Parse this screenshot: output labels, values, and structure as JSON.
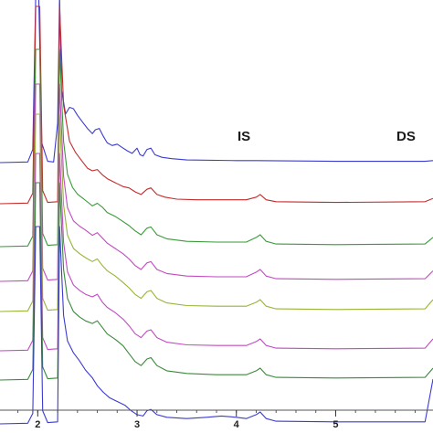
{
  "chart_data": {
    "type": "line",
    "title": "",
    "xlabel": "",
    "ylabel": "",
    "xlim": [
      1.62,
      5.98
    ],
    "x_ticks": [
      2,
      3,
      4,
      5
    ],
    "x_tick_labels": [
      "2",
      "3",
      "4",
      "5"
    ],
    "grid": false,
    "legend": "none",
    "annotations": [
      {
        "text": "IS",
        "x": 4.06
      },
      {
        "text": "DS",
        "x": 5.74
      }
    ],
    "series": [
      {
        "color": "#3b3bd0",
        "offset": 0,
        "points": [
          [
            1.62,
            0
          ],
          [
            1.9,
            1
          ],
          [
            1.95,
            20
          ],
          [
            1.98,
            300
          ],
          [
            2.01,
            300
          ],
          [
            2.04,
            30
          ],
          [
            2.1,
            2
          ],
          [
            2.16,
            1
          ],
          [
            2.2,
            60
          ],
          [
            2.22,
            300
          ],
          [
            2.24,
            110
          ],
          [
            2.28,
            74
          ],
          [
            2.32,
            84
          ],
          [
            2.36,
            82
          ],
          [
            2.4,
            72
          ],
          [
            2.45,
            62
          ],
          [
            2.5,
            52
          ],
          [
            2.55,
            44
          ],
          [
            2.58,
            50
          ],
          [
            2.62,
            52
          ],
          [
            2.66,
            40
          ],
          [
            2.7,
            30
          ],
          [
            2.75,
            26
          ],
          [
            2.8,
            28
          ],
          [
            2.85,
            23
          ],
          [
            2.9,
            18
          ],
          [
            2.95,
            14
          ],
          [
            3.0,
            22
          ],
          [
            3.03,
            12
          ],
          [
            3.06,
            10
          ],
          [
            3.1,
            20
          ],
          [
            3.14,
            22
          ],
          [
            3.18,
            12
          ],
          [
            3.25,
            8
          ],
          [
            3.35,
            6
          ],
          [
            3.5,
            4
          ],
          [
            4.0,
            3
          ],
          [
            4.2,
            3
          ],
          [
            5.0,
            2
          ],
          [
            5.9,
            2
          ],
          [
            5.98,
            3
          ]
        ]
      },
      {
        "color": "#c42a2a",
        "offset": 45,
        "points": [
          [
            1.62,
            0
          ],
          [
            1.9,
            1
          ],
          [
            1.95,
            16
          ],
          [
            1.98,
            300
          ],
          [
            2.02,
            300
          ],
          [
            2.05,
            20
          ],
          [
            2.1,
            2
          ],
          [
            2.2,
            3
          ],
          [
            2.22,
            300
          ],
          [
            2.26,
            150
          ],
          [
            2.32,
            95
          ],
          [
            2.38,
            78
          ],
          [
            2.45,
            64
          ],
          [
            2.5,
            54
          ],
          [
            2.55,
            50
          ],
          [
            2.6,
            52
          ],
          [
            2.65,
            44
          ],
          [
            2.7,
            38
          ],
          [
            2.78,
            32
          ],
          [
            2.86,
            26
          ],
          [
            2.92,
            24
          ],
          [
            2.98,
            18
          ],
          [
            3.04,
            14
          ],
          [
            3.1,
            22
          ],
          [
            3.14,
            24
          ],
          [
            3.2,
            14
          ],
          [
            3.28,
            10
          ],
          [
            3.4,
            7
          ],
          [
            3.6,
            6
          ],
          [
            3.8,
            6
          ],
          [
            4.1,
            6
          ],
          [
            4.2,
            10
          ],
          [
            4.24,
            14
          ],
          [
            4.3,
            6
          ],
          [
            4.4,
            3
          ],
          [
            5.0,
            2
          ],
          [
            5.9,
            3
          ],
          [
            5.98,
            8
          ]
        ]
      },
      {
        "color": "#3a9a3a",
        "offset": 92,
        "points": [
          [
            1.62,
            0
          ],
          [
            1.9,
            1
          ],
          [
            1.95,
            16
          ],
          [
            1.98,
            300
          ],
          [
            2.02,
            300
          ],
          [
            2.05,
            20
          ],
          [
            2.1,
            2
          ],
          [
            2.2,
            3
          ],
          [
            2.22,
            300
          ],
          [
            2.26,
            160
          ],
          [
            2.3,
            110
          ],
          [
            2.35,
            90
          ],
          [
            2.4,
            80
          ],
          [
            2.45,
            74
          ],
          [
            2.5,
            68
          ],
          [
            2.55,
            62
          ],
          [
            2.6,
            66
          ],
          [
            2.65,
            60
          ],
          [
            2.7,
            52
          ],
          [
            2.78,
            46
          ],
          [
            2.86,
            38
          ],
          [
            2.92,
            32
          ],
          [
            2.98,
            24
          ],
          [
            3.04,
            18
          ],
          [
            3.1,
            28
          ],
          [
            3.14,
            30
          ],
          [
            3.2,
            18
          ],
          [
            3.3,
            12
          ],
          [
            3.5,
            8
          ],
          [
            3.8,
            7
          ],
          [
            4.1,
            7
          ],
          [
            4.2,
            14
          ],
          [
            4.24,
            18
          ],
          [
            4.3,
            8
          ],
          [
            4.4,
            4
          ],
          [
            5.0,
            3
          ],
          [
            5.9,
            4
          ],
          [
            5.98,
            14
          ]
        ]
      },
      {
        "color": "#c24ac2",
        "offset": 130,
        "points": [
          [
            1.62,
            0
          ],
          [
            1.9,
            1
          ],
          [
            1.95,
            16
          ],
          [
            1.98,
            300
          ],
          [
            2.02,
            300
          ],
          [
            2.05,
            20
          ],
          [
            2.1,
            2
          ],
          [
            2.2,
            3
          ],
          [
            2.22,
            300
          ],
          [
            2.26,
            160
          ],
          [
            2.3,
            112
          ],
          [
            2.36,
            92
          ],
          [
            2.42,
            84
          ],
          [
            2.48,
            78
          ],
          [
            2.55,
            70
          ],
          [
            2.6,
            74
          ],
          [
            2.65,
            66
          ],
          [
            2.7,
            58
          ],
          [
            2.78,
            50
          ],
          [
            2.86,
            42
          ],
          [
            2.92,
            34
          ],
          [
            2.98,
            24
          ],
          [
            3.04,
            18
          ],
          [
            3.1,
            28
          ],
          [
            3.14,
            30
          ],
          [
            3.2,
            18
          ],
          [
            3.3,
            12
          ],
          [
            3.5,
            8
          ],
          [
            3.8,
            7
          ],
          [
            4.1,
            7
          ],
          [
            4.2,
            14
          ],
          [
            4.24,
            18
          ],
          [
            4.3,
            8
          ],
          [
            4.4,
            4
          ],
          [
            5.0,
            3
          ],
          [
            5.9,
            4
          ],
          [
            5.98,
            16
          ]
        ]
      },
      {
        "color": "#98b436",
        "offset": 163,
        "points": [
          [
            1.62,
            0
          ],
          [
            1.9,
            1
          ],
          [
            1.95,
            16
          ],
          [
            1.98,
            300
          ],
          [
            2.02,
            300
          ],
          [
            2.05,
            20
          ],
          [
            2.1,
            2
          ],
          [
            2.2,
            3
          ],
          [
            2.22,
            300
          ],
          [
            2.26,
            162
          ],
          [
            2.3,
            116
          ],
          [
            2.36,
            96
          ],
          [
            2.42,
            88
          ],
          [
            2.48,
            82
          ],
          [
            2.55,
            76
          ],
          [
            2.6,
            80
          ],
          [
            2.65,
            70
          ],
          [
            2.7,
            62
          ],
          [
            2.78,
            54
          ],
          [
            2.86,
            44
          ],
          [
            2.92,
            36
          ],
          [
            2.98,
            26
          ],
          [
            3.04,
            20
          ],
          [
            3.1,
            30
          ],
          [
            3.14,
            32
          ],
          [
            3.2,
            20
          ],
          [
            3.3,
            13
          ],
          [
            3.5,
            9
          ],
          [
            3.8,
            8
          ],
          [
            4.1,
            8
          ],
          [
            4.2,
            14
          ],
          [
            4.24,
            18
          ],
          [
            4.3,
            8
          ],
          [
            4.4,
            4
          ],
          [
            5.0,
            3
          ],
          [
            5.9,
            4
          ],
          [
            5.98,
            18
          ]
        ]
      },
      {
        "color": "#c24ac2",
        "offset": 206,
        "points": [
          [
            1.62,
            0
          ],
          [
            1.9,
            1
          ],
          [
            1.95,
            16
          ],
          [
            1.98,
            300
          ],
          [
            2.02,
            300
          ],
          [
            2.05,
            20
          ],
          [
            2.1,
            2
          ],
          [
            2.2,
            3
          ],
          [
            2.22,
            300
          ],
          [
            2.26,
            165
          ],
          [
            2.3,
            120
          ],
          [
            2.36,
            100
          ],
          [
            2.42,
            92
          ],
          [
            2.48,
            86
          ],
          [
            2.55,
            82
          ],
          [
            2.6,
            86
          ],
          [
            2.65,
            74
          ],
          [
            2.7,
            66
          ],
          [
            2.78,
            58
          ],
          [
            2.86,
            48
          ],
          [
            2.92,
            38
          ],
          [
            2.98,
            26
          ],
          [
            3.04,
            20
          ],
          [
            3.1,
            30
          ],
          [
            3.14,
            32
          ],
          [
            3.2,
            20
          ],
          [
            3.3,
            13
          ],
          [
            3.5,
            9
          ],
          [
            3.8,
            8
          ],
          [
            4.1,
            8
          ],
          [
            4.2,
            14
          ],
          [
            4.24,
            18
          ],
          [
            4.3,
            8
          ],
          [
            4.4,
            4
          ],
          [
            5.0,
            3
          ],
          [
            5.9,
            4
          ],
          [
            5.98,
            18
          ]
        ]
      },
      {
        "color": "#3a8a3a",
        "offset": 238,
        "points": [
          [
            1.62,
            0
          ],
          [
            1.9,
            1
          ],
          [
            1.95,
            16
          ],
          [
            1.98,
            300
          ],
          [
            2.02,
            300
          ],
          [
            2.05,
            20
          ],
          [
            2.1,
            2
          ],
          [
            2.2,
            3
          ],
          [
            2.22,
            300
          ],
          [
            2.26,
            168
          ],
          [
            2.3,
            124
          ],
          [
            2.36,
            104
          ],
          [
            2.42,
            96
          ],
          [
            2.48,
            90
          ],
          [
            2.55,
            86
          ],
          [
            2.6,
            90
          ],
          [
            2.65,
            80
          ],
          [
            2.7,
            70
          ],
          [
            2.78,
            62
          ],
          [
            2.86,
            52
          ],
          [
            2.92,
            40
          ],
          [
            2.98,
            28
          ],
          [
            3.04,
            22
          ],
          [
            3.1,
            32
          ],
          [
            3.14,
            34
          ],
          [
            3.2,
            22
          ],
          [
            3.3,
            14
          ],
          [
            3.5,
            10
          ],
          [
            3.8,
            8
          ],
          [
            4.1,
            8
          ],
          [
            4.2,
            14
          ],
          [
            4.24,
            18
          ],
          [
            4.3,
            8
          ],
          [
            4.4,
            4
          ],
          [
            5.0,
            3
          ],
          [
            5.9,
            4
          ],
          [
            5.98,
            18
          ]
        ]
      },
      {
        "color": "#3b3bd0",
        "offset": 286,
        "points": [
          [
            1.62,
            0
          ],
          [
            1.9,
            1
          ],
          [
            1.95,
            16
          ],
          [
            1.98,
            300
          ],
          [
            2.02,
            300
          ],
          [
            2.05,
            20
          ],
          [
            2.1,
            2
          ],
          [
            2.2,
            3
          ],
          [
            2.22,
            300
          ],
          [
            2.26,
            165
          ],
          [
            2.3,
            126
          ],
          [
            2.36,
            108
          ],
          [
            2.42,
            96
          ],
          [
            2.48,
            82
          ],
          [
            2.55,
            70
          ],
          [
            2.6,
            58
          ],
          [
            2.66,
            48
          ],
          [
            2.72,
            40
          ],
          [
            2.8,
            34
          ],
          [
            2.88,
            28
          ],
          [
            2.94,
            20
          ],
          [
            3.0,
            14
          ],
          [
            3.06,
            12
          ],
          [
            3.1,
            20
          ],
          [
            3.14,
            22
          ],
          [
            3.2,
            14
          ],
          [
            3.3,
            10
          ],
          [
            3.5,
            8
          ],
          [
            3.7,
            10
          ],
          [
            3.85,
            12
          ],
          [
            4.0,
            10
          ],
          [
            4.1,
            8
          ],
          [
            4.2,
            14
          ],
          [
            4.24,
            18
          ],
          [
            4.3,
            8
          ],
          [
            4.4,
            4
          ],
          [
            5.0,
            3
          ],
          [
            5.9,
            3
          ],
          [
            5.98,
            68
          ]
        ]
      }
    ]
  }
}
